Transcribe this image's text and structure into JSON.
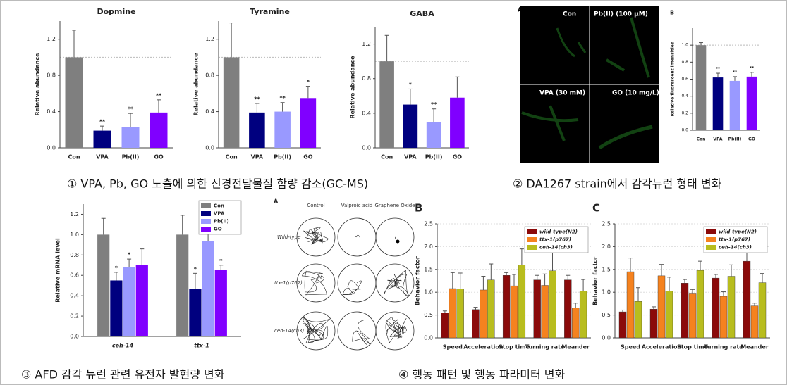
{
  "chart_data": [
    {
      "type": "bar",
      "title": "Dopmine",
      "ylabel": "Relative abundance",
      "categories": [
        "Con",
        "VPA",
        "Pb(II)",
        "GO"
      ],
      "values": [
        1.0,
        0.19,
        0.23,
        0.39
      ],
      "errors": [
        0.3,
        0.05,
        0.15,
        0.14
      ],
      "significance": [
        null,
        "**",
        "**",
        "**"
      ],
      "colors": [
        "#7f7f7f",
        "#00007f",
        "#9999ff",
        "#8000ff"
      ],
      "ylim": [
        0,
        1.4
      ],
      "yticks": [
        {
          "value": 0,
          "label": "0.0"
        },
        0.4,
        0.8,
        1.2
      ],
      "reference_line": 1
    },
    {
      "type": "bar",
      "title": "Tyramine",
      "ylabel": "Relative abundance",
      "categories": [
        "Con",
        "VPA",
        "Pb(II)",
        "GO"
      ],
      "values": [
        1.0,
        0.39,
        0.4,
        0.55
      ],
      "errors": [
        0.38,
        0.1,
        0.1,
        0.13
      ],
      "significance": [
        null,
        "**",
        "**",
        "*"
      ],
      "colors": [
        "#7f7f7f",
        "#00007f",
        "#9999ff",
        "#8000ff"
      ],
      "ylim": [
        0,
        1.4
      ],
      "yticks": [
        {
          "value": 0,
          "label": "0.0"
        },
        0.4,
        0.8,
        1.2
      ],
      "reference_line": 1
    },
    {
      "type": "bar",
      "title": "GABA",
      "ylabel": "Relative abundance",
      "categories": [
        "Con",
        "VPA",
        "Pb(II)",
        "GO"
      ],
      "values": [
        1.0,
        0.5,
        0.3,
        0.58
      ],
      "errors": [
        0.3,
        0.18,
        0.15,
        0.24
      ],
      "significance": [
        null,
        "*",
        "**",
        null
      ],
      "colors": [
        "#7f7f7f",
        "#00007f",
        "#9999ff",
        "#8000ff"
      ],
      "ylim": [
        0,
        1.4
      ],
      "yticks": [
        {
          "value": 0,
          "label": "0.0"
        },
        0.4,
        0.8,
        1.2
      ],
      "reference_line": 1
    },
    {
      "type": "bar",
      "panel_label": "B",
      "ylabel": "Relative fluorescent intensities",
      "categories": [
        "Con",
        "VPA",
        "Pb(II)",
        "GO"
      ],
      "values": [
        1.0,
        0.62,
        0.58,
        0.63
      ],
      "errors": [
        0.03,
        0.05,
        0.05,
        0.05
      ],
      "significance": [
        null,
        "**",
        "**",
        "**"
      ],
      "colors": [
        "#7f7f7f",
        "#00007f",
        "#9999ff",
        "#8000ff"
      ],
      "ylim": [
        0,
        1.2
      ],
      "yticks": [
        {
          "value": 0,
          "label": "0.0"
        },
        0.2,
        0.4,
        0.6,
        0.8,
        {
          "value": 1,
          "label": "1.0"
        }
      ],
      "reference_line": 1
    },
    {
      "type": "bar",
      "ylabel": "Relative mRNA level",
      "categories": [
        "ceh-14",
        "ttx-1"
      ],
      "italic_categories": true,
      "legend": "top-right",
      "ylim": [
        0,
        1.3
      ],
      "yticks": [
        {
          "value": 0,
          "label": "0.0"
        },
        0.2,
        0.4,
        0.6,
        0.8,
        {
          "value": 1,
          "label": "1.0"
        },
        1.2
      ],
      "series": [
        {
          "name": "Con",
          "color": "#7f7f7f",
          "values": [
            1.0,
            1.0
          ],
          "errors": [
            0.16,
            0.19
          ]
        },
        {
          "name": "VPA",
          "color": "#00007f",
          "values": [
            0.55,
            0.47
          ],
          "errors": [
            0.08,
            0.15
          ],
          "significance": [
            "*",
            "*"
          ]
        },
        {
          "name": "Pb(II)",
          "color": "#9999ff",
          "values": [
            0.68,
            0.94
          ],
          "errors": [
            0.08,
            0.09
          ],
          "significance": [
            "*",
            null
          ]
        },
        {
          "name": "GO",
          "color": "#8000ff",
          "values": [
            0.7,
            0.65
          ],
          "errors": [
            0.16,
            0.05
          ],
          "significance": [
            null,
            "*"
          ]
        }
      ]
    },
    {
      "type": "bar",
      "panel_label": "B",
      "ylabel": "Behavior factor",
      "categories": [
        "Speed",
        "Acceleration",
        "Stop time",
        "Turning rate",
        "Meander"
      ],
      "legend": "top-right",
      "grid": true,
      "ylim": [
        0,
        2.5
      ],
      "yticks": [
        {
          "value": 0,
          "label": "0.0"
        },
        0.5,
        {
          "value": 1,
          "label": "1.0"
        },
        1.5,
        {
          "value": 2,
          "label": "2.0"
        },
        2.5
      ],
      "series": [
        {
          "name": "wild-type(N2)",
          "color": "#8b0a0a",
          "values": [
            0.55,
            0.62,
            1.37,
            1.27,
            1.27
          ],
          "errors": [
            0.04,
            0.05,
            0.06,
            0.1,
            0.1
          ]
        },
        {
          "name": "ttx-1(p767)",
          "color": "#f5821f",
          "values": [
            1.08,
            1.05,
            1.14,
            1.15,
            0.66
          ],
          "errors": [
            0.35,
            0.3,
            0.25,
            0.25,
            0.1
          ]
        },
        {
          "name": "ceh-14(ch3)",
          "color": "#b8bd1e",
          "values": [
            1.07,
            1.27,
            1.6,
            1.47,
            1.03
          ],
          "errors": [
            0.35,
            0.35,
            0.35,
            0.4,
            0.25
          ]
        }
      ]
    },
    {
      "type": "bar",
      "panel_label": "C",
      "ylabel": "Behavior factor",
      "categories": [
        "Speed",
        "Acceleration",
        "Stop time",
        "Turning rate",
        "Meander"
      ],
      "legend": "top-right",
      "grid": true,
      "ylim": [
        0,
        2.5
      ],
      "yticks": [
        {
          "value": 0,
          "label": "0.0"
        },
        0.5,
        {
          "value": 1,
          "label": "1.0"
        },
        1.5,
        {
          "value": 2,
          "label": "2.0"
        },
        2.5
      ],
      "series": [
        {
          "name": "wild-type(N2)",
          "color": "#8b0a0a",
          "values": [
            0.57,
            0.63,
            1.2,
            1.31,
            1.68
          ],
          "errors": [
            0.04,
            0.05,
            0.08,
            0.08,
            0.3
          ]
        },
        {
          "name": "ttx-1(p767)",
          "color": "#f5821f",
          "values": [
            1.45,
            1.36,
            0.98,
            0.91,
            0.7
          ],
          "errors": [
            0.3,
            0.25,
            0.08,
            0.1,
            0.06
          ]
        },
        {
          "name": "ceh-14(ch3)",
          "color": "#b8bd1e",
          "values": [
            0.8,
            1.03,
            1.48,
            1.35,
            1.21
          ],
          "errors": [
            0.3,
            0.3,
            0.2,
            0.25,
            0.2
          ]
        }
      ]
    }
  ],
  "microscopy": {
    "panel_label": "A",
    "labels": [
      "Con",
      "Pb(II) (100 μM)",
      "VPA (30 mM)",
      "GO (10 mg/L)"
    ]
  },
  "trajectories": {
    "panel_label": "A",
    "columns": [
      "Control",
      "Valproic acid",
      "Graphene Oxide"
    ],
    "rows": [
      "Wild-type",
      "ttx-1(p767)",
      "ceh-14(ch3)"
    ]
  },
  "captions": [
    "① VPA, Pb, GO 노출에 의한 신경전달물질 함량 감소(GC-MS)",
    "② DA1267 strain에서 감각뉴런 형태 변화",
    "③ AFD 감각 뉴런 관련 유전자 발현량 변화",
    "④ 행동 패턴 및 행동 파라미터 변화"
  ]
}
